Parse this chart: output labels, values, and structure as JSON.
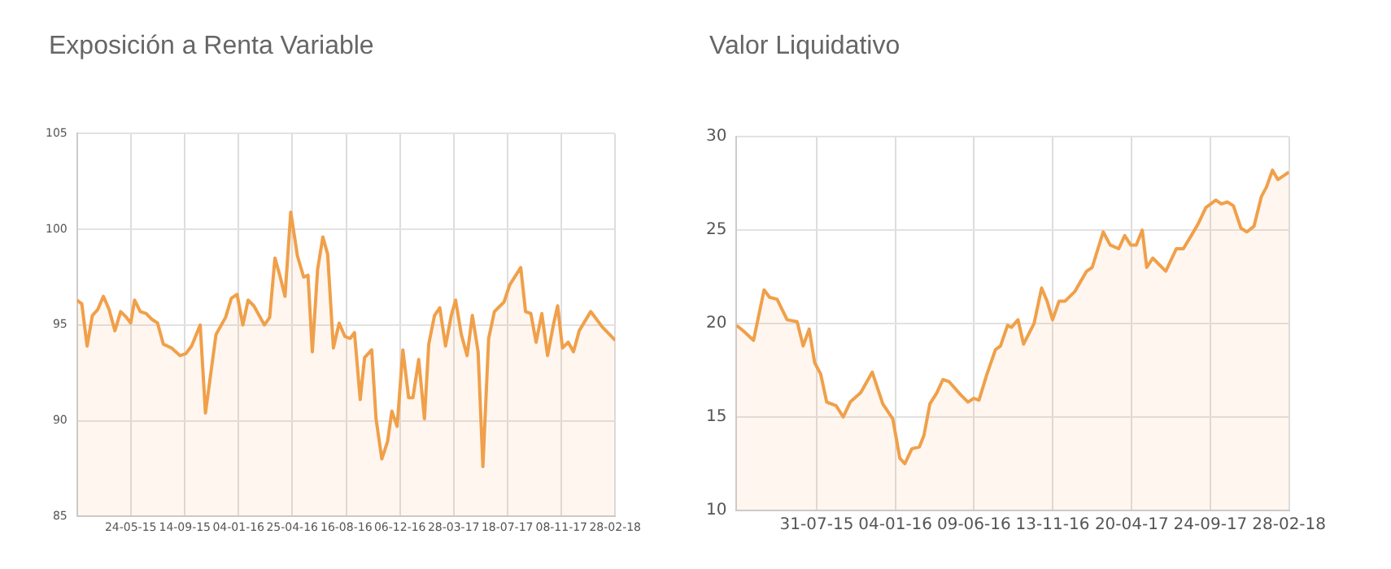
{
  "chart_data": [
    {
      "type": "area",
      "title": "Exposición a Renta Variable",
      "color": "#f0a04a",
      "x": [
        "2015-02-01",
        "2015-02-11",
        "2015-02-22",
        "2015-03-05",
        "2015-03-16",
        "2015-03-28",
        "2015-04-09",
        "2015-04-21",
        "2015-05-03",
        "2015-05-15",
        "2015-05-24",
        "2015-06-01",
        "2015-06-13",
        "2015-06-25",
        "2015-07-07",
        "2015-07-19",
        "2015-07-31",
        "2015-08-17",
        "2015-09-04",
        "2015-09-16",
        "2015-09-28",
        "2015-10-16",
        "2015-10-27",
        "2015-11-18",
        "2015-12-08",
        "2015-12-20",
        "2016-01-01",
        "2016-01-13",
        "2016-01-24",
        "2016-02-05",
        "2016-02-27",
        "2016-03-09",
        "2016-03-20",
        "2016-03-30",
        "2016-04-10",
        "2016-04-22",
        "2016-05-06",
        "2016-05-19",
        "2016-05-28",
        "2016-06-06",
        "2016-06-17",
        "2016-06-28",
        "2016-07-08",
        "2016-07-20",
        "2016-08-01",
        "2016-08-13",
        "2016-08-24",
        "2016-09-02",
        "2016-09-14",
        "2016-09-23",
        "2016-10-08",
        "2016-10-17",
        "2016-10-29",
        "2016-11-10",
        "2016-11-19",
        "2016-11-30",
        "2016-12-12",
        "2016-12-24",
        "2017-01-02",
        "2017-01-14",
        "2017-01-26",
        "2017-02-04",
        "2017-02-16",
        "2017-02-27",
        "2017-03-11",
        "2017-03-23",
        "2017-04-01",
        "2017-04-13",
        "2017-04-25",
        "2017-05-06",
        "2017-05-18",
        "2017-05-28",
        "2017-06-09",
        "2017-06-21",
        "2017-07-03",
        "2017-07-11",
        "2017-07-23",
        "2017-08-15",
        "2017-08-25",
        "2017-09-05",
        "2017-09-16",
        "2017-09-28",
        "2017-10-10",
        "2017-10-22",
        "2017-10-31",
        "2017-11-10",
        "2017-11-22",
        "2017-12-03",
        "2017-12-15",
        "2018-01-08",
        "2018-02-01",
        "2018-02-28"
      ],
      "values": [
        96.3,
        96.1,
        93.9,
        95.5,
        95.8,
        96.5,
        95.8,
        94.7,
        95.7,
        95.4,
        95.1,
        96.3,
        95.7,
        95.6,
        95.3,
        95.1,
        94.0,
        93.8,
        93.4,
        93.5,
        93.9,
        95.0,
        90.4,
        94.5,
        95.4,
        96.4,
        96.6,
        95.0,
        96.3,
        96.0,
        95.0,
        95.4,
        98.5,
        97.6,
        96.5,
        100.9,
        98.6,
        97.5,
        97.6,
        93.6,
        97.9,
        99.6,
        98.7,
        93.8,
        95.1,
        94.4,
        94.3,
        94.6,
        91.1,
        93.3,
        93.7,
        90.1,
        88.0,
        88.9,
        90.5,
        89.7,
        93.7,
        91.2,
        91.2,
        93.2,
        90.1,
        94.0,
        95.5,
        95.9,
        93.9,
        95.5,
        96.3,
        94.5,
        93.4,
        95.5,
        93.6,
        87.6,
        94.3,
        95.7,
        96.0,
        96.2,
        97.1,
        98.0,
        95.7,
        95.6,
        94.1,
        95.6,
        93.4,
        95.0,
        96.0,
        93.8,
        94.1,
        93.6,
        94.7,
        95.7,
        94.9,
        94.2
      ],
      "xlim": [
        "2015-02-01",
        "2018-02-28"
      ],
      "xticks": [
        {
          "value": "2015-05-24",
          "label": "24-05-15"
        },
        {
          "value": "2015-09-14",
          "label": "14-09-15"
        },
        {
          "value": "2016-01-04",
          "label": "04-01-16"
        },
        {
          "value": "2016-04-25",
          "label": "25-04-16"
        },
        {
          "value": "2016-08-16",
          "label": "16-08-16"
        },
        {
          "value": "2016-12-06",
          "label": "06-12-16"
        },
        {
          "value": "2017-03-28",
          "label": "28-03-17"
        },
        {
          "value": "2017-07-18",
          "label": "18-07-17"
        },
        {
          "value": "2017-11-08",
          "label": "08-11-17"
        },
        {
          "value": "2018-02-28",
          "label": "28-02-18"
        }
      ],
      "ylim": [
        85,
        105
      ],
      "yticks": [
        85,
        90,
        95,
        100,
        105
      ],
      "grid": true
    },
    {
      "type": "area",
      "title": "Valor Liquidativo",
      "color": "#f0a04a",
      "x": [
        "2015-02-21",
        "2015-03-07",
        "2015-03-27",
        "2015-04-17",
        "2015-04-28",
        "2015-05-13",
        "2015-06-02",
        "2015-06-22",
        "2015-07-04",
        "2015-07-16",
        "2015-07-27",
        "2015-08-08",
        "2015-08-20",
        "2015-09-08",
        "2015-09-22",
        "2015-10-06",
        "2015-10-27",
        "2015-11-19",
        "2015-12-10",
        "2015-12-30",
        "2016-01-13",
        "2016-01-23",
        "2016-02-06",
        "2016-02-21",
        "2016-03-01",
        "2016-03-13",
        "2016-03-27",
        "2016-04-08",
        "2016-04-20",
        "2016-05-13",
        "2016-05-28",
        "2016-06-09",
        "2016-06-19",
        "2016-07-05",
        "2016-07-22",
        "2016-08-01",
        "2016-08-15",
        "2016-08-23",
        "2016-09-05",
        "2016-09-16",
        "2016-10-07",
        "2016-10-22",
        "2016-11-02",
        "2016-11-13",
        "2016-11-26",
        "2016-12-08",
        "2016-12-27",
        "2017-01-20",
        "2017-01-31",
        "2017-02-22",
        "2017-03-08",
        "2017-03-25",
        "2017-04-06",
        "2017-04-18",
        "2017-04-29",
        "2017-05-11",
        "2017-05-20",
        "2017-06-01",
        "2017-06-27",
        "2017-07-18",
        "2017-08-01",
        "2017-08-19",
        "2017-08-30",
        "2017-09-15",
        "2017-10-05",
        "2017-10-16",
        "2017-10-28",
        "2017-11-09",
        "2017-11-24",
        "2017-12-06",
        "2017-12-20",
        "2018-01-04",
        "2018-01-14",
        "2018-01-26",
        "2018-02-06",
        "2018-02-28"
      ],
      "values": [
        19.9,
        19.6,
        19.1,
        21.8,
        21.4,
        21.3,
        20.2,
        20.1,
        18.8,
        19.7,
        17.9,
        17.3,
        15.8,
        15.6,
        15.0,
        15.8,
        16.3,
        17.4,
        15.7,
        14.9,
        12.8,
        12.5,
        13.3,
        13.4,
        14.0,
        15.7,
        16.3,
        17.0,
        16.9,
        16.2,
        15.8,
        16.0,
        15.9,
        17.3,
        18.6,
        18.8,
        19.9,
        19.8,
        20.2,
        18.9,
        20.0,
        21.9,
        21.2,
        20.2,
        21.2,
        21.2,
        21.7,
        22.8,
        23.0,
        24.9,
        24.2,
        24.0,
        24.7,
        24.2,
        24.2,
        25.0,
        23.0,
        23.5,
        22.8,
        24.0,
        24.0,
        24.8,
        25.3,
        26.2,
        26.6,
        26.4,
        26.5,
        26.3,
        25.1,
        24.9,
        25.2,
        26.8,
        27.3,
        28.2,
        27.7,
        28.1
      ],
      "xlim": [
        "2015-02-21",
        "2018-02-28"
      ],
      "xticks": [
        {
          "value": "2015-07-31",
          "label": "31-07-15"
        },
        {
          "value": "2016-01-04",
          "label": "04-01-16"
        },
        {
          "value": "2016-06-09",
          "label": "09-06-16"
        },
        {
          "value": "2016-11-13",
          "label": "13-11-16"
        },
        {
          "value": "2017-04-20",
          "label": "20-04-17"
        },
        {
          "value": "2017-09-24",
          "label": "24-09-17"
        },
        {
          "value": "2018-02-28",
          "label": "28-02-18"
        }
      ],
      "ylim": [
        10,
        30
      ],
      "yticks": [
        10,
        15,
        20,
        25,
        30
      ],
      "grid": true
    }
  ]
}
